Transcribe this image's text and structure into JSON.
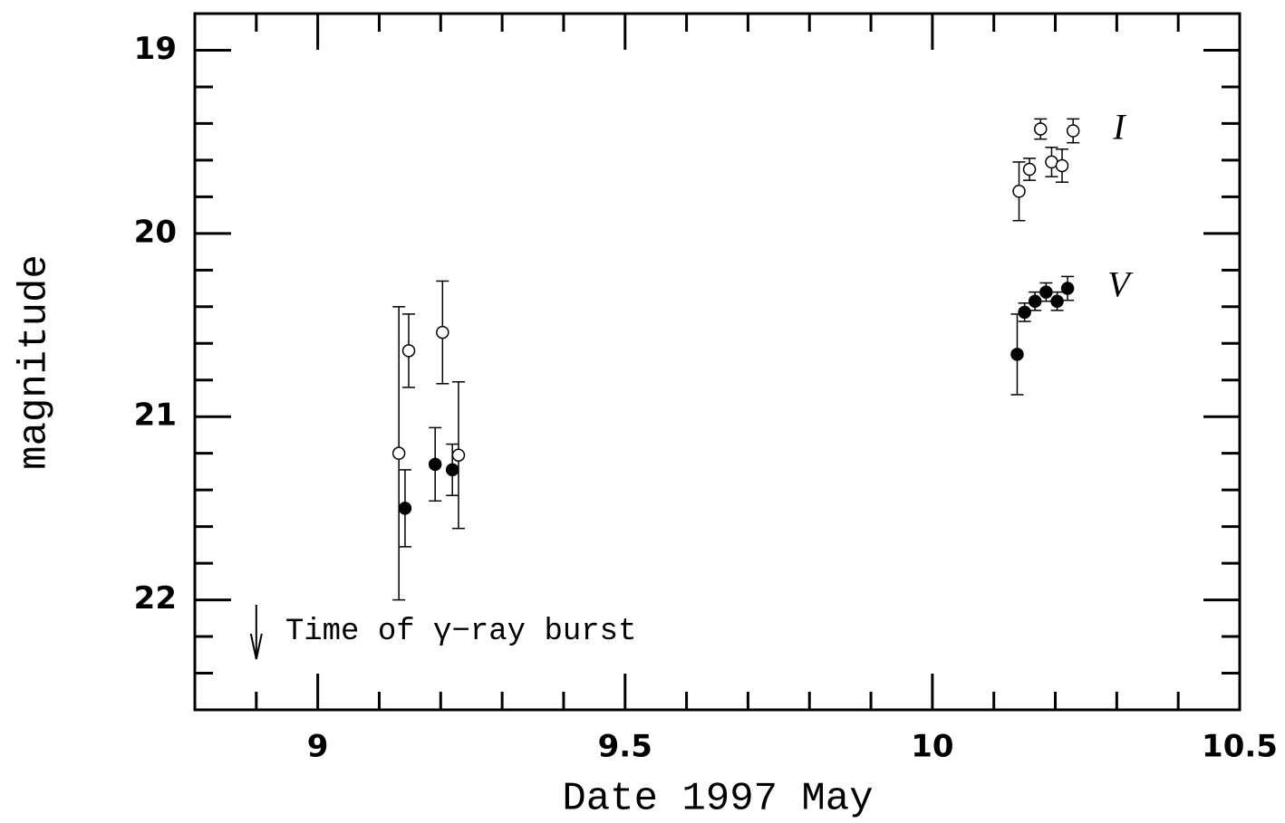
{
  "chart_data": {
    "type": "scatter",
    "xlabel": "Date 1997 May",
    "ylabel": "magnitude",
    "xlim": [
      8.8,
      10.5
    ],
    "ylim": [
      18.8,
      22.6
    ],
    "y_inverted": true,
    "xticks": [
      9,
      9.5,
      10,
      10.5
    ],
    "xticks_minor": [
      8.8,
      8.9,
      9.1,
      9.2,
      9.3,
      9.4,
      9.6,
      9.7,
      9.8,
      9.9,
      10.1,
      10.2,
      10.3,
      10.4
    ],
    "yticks": [
      19,
      20,
      21,
      22
    ],
    "yticks_minor": [
      19.2,
      19.4,
      19.6,
      19.8,
      20.2,
      20.4,
      20.6,
      20.8,
      21.2,
      21.4,
      21.6,
      21.8,
      22.2,
      22.4
    ],
    "grid": false,
    "series": [
      {
        "name": "I",
        "color": "#000000",
        "marker": "open",
        "x": [
          9.132,
          9.148,
          9.203,
          9.229,
          10.141,
          10.158,
          10.176,
          10.194,
          10.211,
          10.229
        ],
        "values": [
          21.2,
          20.64,
          20.54,
          21.21,
          19.77,
          19.65,
          19.43,
          19.61,
          19.63,
          19.44
        ],
        "errors": [
          0.8,
          0.2,
          0.28,
          0.4,
          0.16,
          0.06,
          0.055,
          0.08,
          0.09,
          0.065
        ]
      },
      {
        "name": "V",
        "color": "#000000",
        "marker": "filled",
        "x": [
          9.142,
          9.191,
          9.219,
          10.138,
          10.15,
          10.167,
          10.185,
          10.203,
          10.22
        ],
        "values": [
          21.5,
          21.26,
          21.29,
          20.66,
          20.43,
          20.37,
          20.32,
          20.37,
          20.3
        ],
        "errors": [
          0.21,
          0.2,
          0.14,
          0.22,
          0.05,
          0.05,
          0.05,
          0.05,
          0.065
        ]
      }
    ],
    "annotation": {
      "text": "Time of γ−ray burst",
      "x": 8.9
    }
  }
}
